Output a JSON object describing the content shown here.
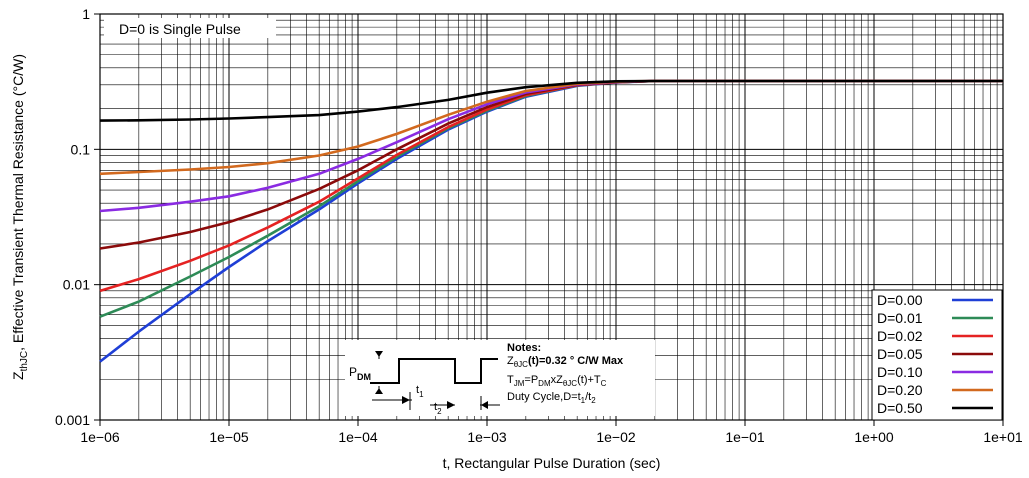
{
  "chart_data": {
    "type": "line",
    "title": "",
    "xlabel": "t, Rectangular Pulse Duration (sec)",
    "ylabel": "Z",
    "ylabel_sub": "thJC",
    "ylabel_rest": ", Effective Transient Thermal Resistance (°C/W)",
    "xscale": "log",
    "yscale": "log",
    "xlim": [
      1e-06,
      10
    ],
    "ylim": [
      0.001,
      1
    ],
    "grid": true,
    "x_ticks": [
      1e-06,
      1e-05,
      0.0001,
      0.001,
      0.01,
      0.1,
      1,
      10
    ],
    "x_tick_labels": [
      "1e−06",
      "1e−05",
      "1e−04",
      "1e−03",
      "1e−02",
      "1e−01",
      "1e+00",
      "1e+01"
    ],
    "y_ticks": [
      0.001,
      0.01,
      0.1,
      1
    ],
    "y_tick_labels": [
      "0.001",
      "0.01",
      "0.1",
      "1"
    ],
    "annotation": "D=0 is Single Pulse",
    "legend_position": "bottom-right",
    "series": [
      {
        "name": "D=0.00",
        "color": "#1f3fd6",
        "x": [
          1e-06,
          2e-06,
          5e-06,
          1e-05,
          2e-05,
          5e-05,
          0.0001,
          0.0002,
          0.0005,
          0.001,
          0.002,
          0.005,
          0.01,
          0.02,
          0.1,
          1,
          10
        ],
        "y": [
          0.0027,
          0.0045,
          0.0085,
          0.0135,
          0.021,
          0.036,
          0.056,
          0.085,
          0.14,
          0.19,
          0.245,
          0.295,
          0.312,
          0.32,
          0.32,
          0.32,
          0.32
        ]
      },
      {
        "name": "D=0.01",
        "color": "#2e8b57",
        "x": [
          1e-06,
          2e-06,
          5e-06,
          1e-05,
          2e-05,
          5e-05,
          0.0001,
          0.0002,
          0.0005,
          0.001,
          0.002,
          0.005,
          0.01,
          0.02,
          0.1,
          1,
          10
        ],
        "y": [
          0.0058,
          0.0075,
          0.0115,
          0.016,
          0.023,
          0.038,
          0.058,
          0.088,
          0.143,
          0.193,
          0.248,
          0.297,
          0.313,
          0.32,
          0.32,
          0.32,
          0.32
        ]
      },
      {
        "name": "D=0.02",
        "color": "#e52222",
        "x": [
          1e-06,
          2e-06,
          5e-06,
          1e-05,
          2e-05,
          5e-05,
          0.0001,
          0.0002,
          0.0005,
          0.001,
          0.002,
          0.005,
          0.01,
          0.02,
          0.1,
          1,
          10
        ],
        "y": [
          0.009,
          0.011,
          0.015,
          0.0195,
          0.0265,
          0.041,
          0.061,
          0.091,
          0.146,
          0.197,
          0.251,
          0.298,
          0.313,
          0.32,
          0.32,
          0.32,
          0.32
        ]
      },
      {
        "name": "D=0.05",
        "color": "#8b0a0a",
        "x": [
          1e-06,
          2e-06,
          5e-06,
          1e-05,
          2e-05,
          5e-05,
          0.0001,
          0.0002,
          0.0005,
          0.001,
          0.002,
          0.005,
          0.01,
          0.02,
          0.1,
          1,
          10
        ],
        "y": [
          0.0185,
          0.0205,
          0.0245,
          0.029,
          0.036,
          0.051,
          0.07,
          0.1,
          0.155,
          0.205,
          0.257,
          0.3,
          0.314,
          0.32,
          0.32,
          0.32,
          0.32
        ]
      },
      {
        "name": "D=0.10",
        "color": "#8a2be2",
        "x": [
          1e-06,
          2e-06,
          5e-06,
          1e-05,
          2e-05,
          5e-05,
          0.0001,
          0.0002,
          0.0005,
          0.001,
          0.002,
          0.005,
          0.01,
          0.02,
          0.1,
          1,
          10
        ],
        "y": [
          0.035,
          0.037,
          0.041,
          0.045,
          0.052,
          0.066,
          0.085,
          0.113,
          0.167,
          0.215,
          0.263,
          0.302,
          0.315,
          0.32,
          0.32,
          0.32,
          0.32
        ]
      },
      {
        "name": "D=0.20",
        "color": "#d2691e",
        "x": [
          1e-06,
          2e-06,
          5e-06,
          1e-05,
          2e-05,
          5e-05,
          0.0001,
          0.0002,
          0.0005,
          0.001,
          0.002,
          0.005,
          0.01,
          0.02,
          0.1,
          1,
          10
        ],
        "y": [
          0.066,
          0.068,
          0.071,
          0.074,
          0.079,
          0.09,
          0.105,
          0.13,
          0.18,
          0.225,
          0.27,
          0.305,
          0.316,
          0.32,
          0.32,
          0.32,
          0.32
        ]
      },
      {
        "name": "D=0.50",
        "color": "#000000",
        "x": [
          1e-06,
          2e-06,
          5e-06,
          1e-05,
          2e-05,
          5e-05,
          0.0001,
          0.0002,
          0.0005,
          0.001,
          0.002,
          0.005,
          0.01,
          0.02,
          0.1,
          1,
          10
        ],
        "y": [
          0.163,
          0.164,
          0.166,
          0.169,
          0.173,
          0.179,
          0.19,
          0.205,
          0.232,
          0.262,
          0.288,
          0.31,
          0.318,
          0.32,
          0.32,
          0.32,
          0.32
        ]
      }
    ],
    "inset": {
      "labels": {
        "pdm": "P",
        "pdm_sub": "DM",
        "t1": "t",
        "t1_sub": "1",
        "t2": "t",
        "t2_sub": "2"
      },
      "notes": {
        "title": "Notes:",
        "line1_a": "Z",
        "line1_sub": "θJC",
        "line1_b": "(t)=0.32 ° C/W Max",
        "line2_a": "T",
        "line2_sub1": "JM",
        "line2_b": "=P",
        "line2_sub2": "DM",
        "line2_c": "xZ",
        "line2_sub3": "θJC",
        "line2_d": "(t)+T",
        "line2_sub4": "C",
        "line3_a": "Duty Cycle,D=t",
        "line3_sub1": "1",
        "line3_b": "/t",
        "line3_sub2": "2"
      }
    }
  }
}
